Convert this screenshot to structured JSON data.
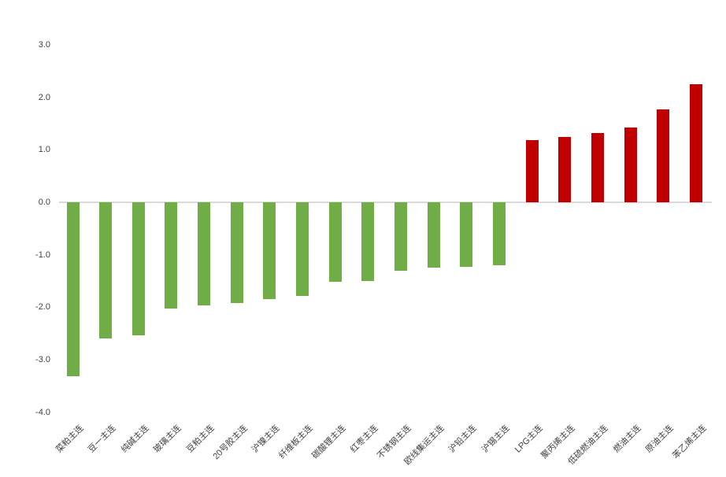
{
  "chart_data": {
    "type": "bar",
    "title": "",
    "xlabel": "",
    "ylabel": "",
    "categories": [
      "菜粕主连",
      "豆一主连",
      "纯碱主连",
      "玻璃主连",
      "豆粕主连",
      "20号胶主连",
      "沪镍主连",
      "纤维板主连",
      "碳酸锂主连",
      "红枣主连",
      "不锈钢主连",
      "欧线集运主连",
      "沪铅主连",
      "沪锡主连",
      "LPG主连",
      "聚丙烯主连",
      "低硫燃油主连",
      "燃油主连",
      "原油主连",
      "苯乙烯主连"
    ],
    "values": [
      -3.31,
      -2.6,
      -2.53,
      -2.02,
      -1.96,
      -1.92,
      -1.85,
      -1.79,
      -1.51,
      -1.5,
      -1.3,
      -1.24,
      -1.23,
      -1.2,
      1.18,
      1.24,
      1.32,
      1.43,
      1.77,
      2.25
    ],
    "ylim": [
      -4.0,
      3.0
    ],
    "ytick_labels": [
      "3.0",
      "2.0",
      "1.0",
      "0.0",
      "-1.0",
      "-2.0",
      "-3.0",
      "-4.0"
    ],
    "ytick_values": [
      3.0,
      2.0,
      1.0,
      0.0,
      -1.0,
      -2.0,
      -3.0,
      -4.0
    ],
    "grid": false,
    "legend_position": "none",
    "bar_label_rotation_deg": 45,
    "colors": {
      "positive": "#c00000",
      "negative": "#70ad47",
      "zero_line": "#d9d9d9",
      "axis_text": "#404040",
      "background": "#ffffff"
    }
  }
}
